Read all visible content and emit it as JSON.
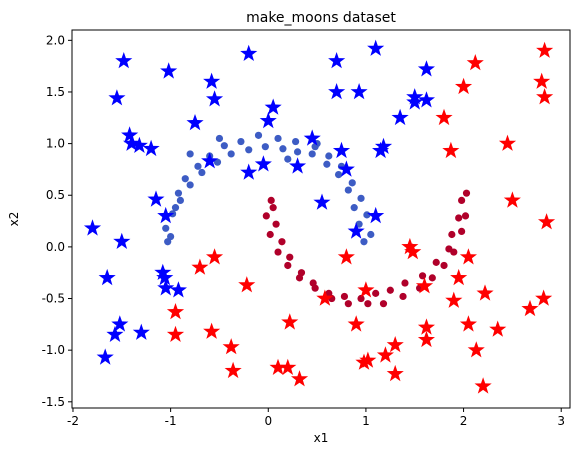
{
  "chart_data": {
    "type": "scatter",
    "title": "make_moons dataset",
    "x_label": "x1",
    "y_label": "x2",
    "xlim": [
      -2.01,
      3.09
    ],
    "ylim": [
      -1.56,
      2.1
    ],
    "xticks": [
      -2,
      -1,
      0,
      1,
      2,
      3
    ],
    "yticks": [
      -1.5,
      {
        "value": -1,
        "label": "-1.0"
      },
      -0.5,
      {
        "value": 0,
        "label": "0.0"
      },
      0.5,
      {
        "value": 1,
        "label": "1.0"
      },
      1.5,
      {
        "value": 2,
        "label": "2.0"
      }
    ],
    "grid": false,
    "series": [
      {
        "color": "#3d5cc4",
        "marker": "circle",
        "x": [
          0.98,
          1.05,
          0.93,
          1.01,
          0.88,
          0.95,
          0.82,
          0.86,
          0.72,
          0.75,
          0.6,
          0.62,
          0.45,
          0.48,
          0.3,
          0.28,
          0.15,
          0.1,
          -0.03,
          -0.1,
          -0.2,
          -0.28,
          -0.38,
          -0.45,
          -0.52,
          -0.6,
          -0.68,
          -0.72,
          -0.8,
          -0.85,
          -0.9,
          -0.92,
          -0.98,
          -0.95,
          -1.05,
          -1.0,
          -1.03,
          0.2,
          -0.5,
          0.5,
          -0.8
        ],
        "y": [
          0.05,
          0.12,
          0.22,
          0.31,
          0.38,
          0.47,
          0.55,
          0.62,
          0.7,
          0.78,
          0.8,
          0.88,
          0.9,
          0.97,
          0.92,
          1.02,
          0.95,
          1.05,
          0.97,
          1.08,
          0.94,
          1.02,
          0.9,
          0.98,
          0.82,
          0.88,
          0.72,
          0.78,
          0.6,
          0.66,
          0.45,
          0.52,
          0.32,
          0.38,
          0.18,
          0.1,
          0.05,
          0.85,
          1.05,
          1.0,
          0.9
        ]
      },
      {
        "color": "#b0002a",
        "marker": "circle",
        "x": [
          0.03,
          0.05,
          -0.02,
          0.08,
          0.02,
          0.14,
          0.1,
          0.22,
          0.2,
          0.34,
          0.32,
          0.46,
          0.48,
          0.62,
          0.65,
          0.78,
          0.82,
          0.95,
          1.02,
          1.1,
          1.18,
          1.25,
          1.38,
          1.4,
          1.55,
          1.58,
          1.68,
          1.72,
          1.8,
          1.85,
          1.9,
          1.88,
          1.98,
          1.95,
          2.02,
          1.98,
          2.03
        ],
        "y": [
          0.45,
          0.38,
          0.3,
          0.22,
          0.12,
          0.05,
          -0.05,
          -0.1,
          -0.18,
          -0.25,
          -0.3,
          -0.35,
          -0.4,
          -0.45,
          -0.5,
          -0.48,
          -0.55,
          -0.5,
          -0.55,
          -0.45,
          -0.55,
          -0.42,
          -0.48,
          -0.35,
          -0.4,
          -0.28,
          -0.3,
          -0.15,
          -0.18,
          -0.02,
          -0.05,
          0.12,
          0.15,
          0.28,
          0.3,
          0.45,
          0.52
        ]
      },
      {
        "color": "#0000ff",
        "marker": "star",
        "x": [
          -1.8,
          -1.65,
          -1.67,
          -1.57,
          -1.52,
          -1.5,
          -1.3,
          -1.55,
          -1.48,
          -1.42,
          -1.4,
          -1.32,
          -1.2,
          -1.15,
          -1.05,
          -1.08,
          -1.06,
          -1.05,
          -0.92,
          -1.02,
          -0.75,
          -0.58,
          -0.55,
          -0.6,
          -0.2,
          -0.2,
          0.05,
          0.0,
          -0.05,
          0.3,
          0.45,
          0.55,
          0.7,
          0.7,
          0.75,
          0.8,
          0.93,
          0.9,
          1.1,
          1.1,
          1.15,
          1.18,
          1.35,
          1.5,
          1.5,
          1.62,
          1.62
        ],
        "y": [
          0.18,
          -0.3,
          -1.07,
          -0.85,
          -0.75,
          0.05,
          -0.83,
          1.44,
          1.8,
          1.08,
          1.0,
          0.98,
          0.95,
          0.46,
          0.3,
          -0.25,
          -0.3,
          -0.4,
          -0.42,
          1.7,
          1.2,
          1.6,
          1.43,
          0.83,
          1.87,
          0.72,
          1.35,
          1.22,
          0.8,
          0.78,
          1.05,
          0.43,
          1.8,
          1.5,
          0.93,
          0.75,
          1.5,
          0.15,
          1.92,
          0.3,
          0.93,
          0.97,
          1.25,
          1.4,
          1.45,
          1.72,
          1.42
        ]
      },
      {
        "color": "#ff0000",
        "marker": "star",
        "x": [
          -0.95,
          -0.95,
          -0.7,
          -0.55,
          -0.58,
          -0.38,
          -0.36,
          -0.22,
          0.1,
          0.2,
          0.22,
          0.32,
          0.58,
          0.8,
          0.9,
          0.98,
          1.02,
          1.0,
          1.2,
          1.3,
          1.3,
          1.45,
          1.48,
          1.62,
          1.62,
          1.6,
          1.8,
          1.87,
          1.9,
          1.95,
          2.0,
          2.05,
          2.05,
          2.12,
          2.13,
          2.2,
          2.22,
          2.45,
          2.5,
          2.35,
          2.68,
          2.8,
          2.83,
          2.83,
          2.82,
          2.85
        ],
        "y": [
          -0.63,
          -0.85,
          -0.2,
          -0.1,
          -0.82,
          -0.97,
          -1.2,
          -0.37,
          -1.17,
          -1.17,
          -0.73,
          -1.28,
          -0.5,
          -0.1,
          -0.75,
          -1.12,
          -1.1,
          -0.42,
          -1.05,
          -0.95,
          -1.23,
          0.0,
          -0.05,
          -0.78,
          -0.9,
          -0.38,
          1.25,
          0.93,
          -0.52,
          -0.3,
          1.55,
          -0.1,
          -0.75,
          1.78,
          -1.0,
          -1.35,
          -0.45,
          1.0,
          0.45,
          -0.8,
          -0.6,
          1.6,
          1.45,
          1.9,
          -0.5,
          0.24
        ]
      }
    ]
  }
}
